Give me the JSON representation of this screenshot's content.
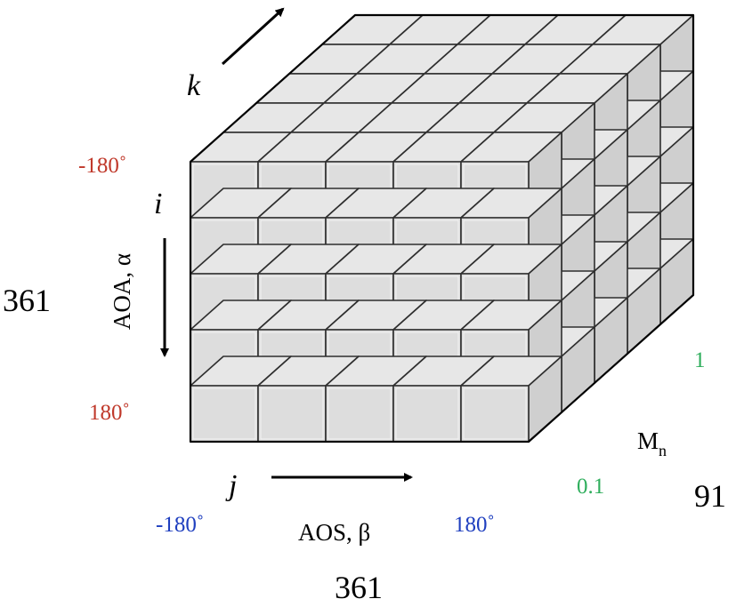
{
  "axes": {
    "k": {
      "letter": "k"
    },
    "i": {
      "letter": "i",
      "name": "AOA, α",
      "start": "-180˚",
      "end": "180˚",
      "count": "361"
    },
    "j": {
      "letter": "j",
      "name": "AOS, β",
      "start": "-180˚",
      "end": "180˚",
      "count": "361"
    },
    "m": {
      "name": "M",
      "subscript": "n",
      "start": "0.1",
      "end": "1",
      "count": "91"
    }
  },
  "grid": {
    "rows": 5,
    "cols": 5,
    "depth": 5
  },
  "colors": {
    "front": "#dddddd",
    "top": "#e7e7e7",
    "side": "#cfcfcf",
    "cube_edge": "#2f2f2f",
    "outline": "#000000",
    "alpha_range": "#c0392b",
    "beta_range": "#1f3fbf",
    "mach_range": "#2fae5c"
  }
}
